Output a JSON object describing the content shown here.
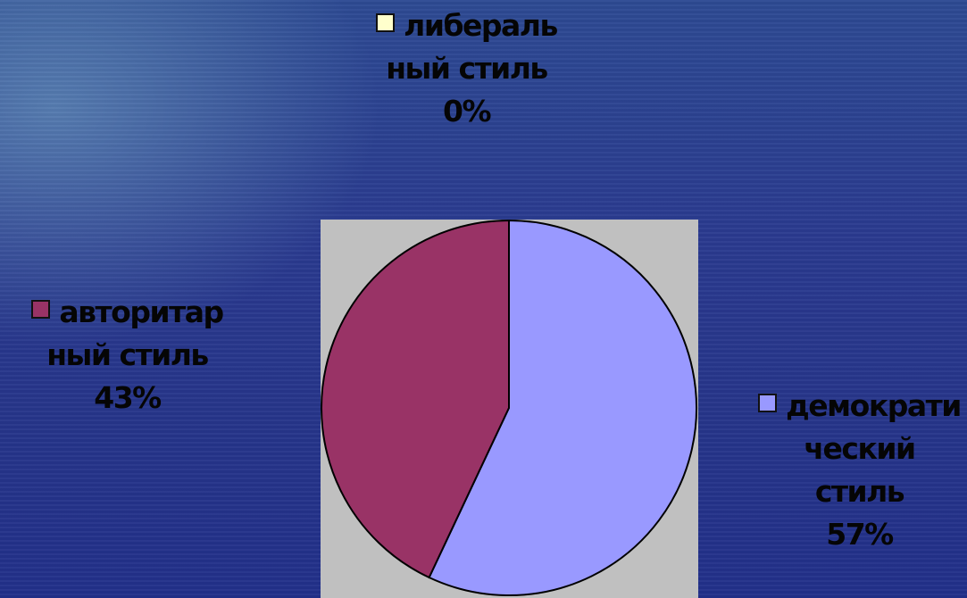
{
  "chart_data": {
    "type": "pie",
    "slices": [
      {
        "label_lines": [
          "демократи",
          "ческий",
          "стиль"
        ],
        "percent_label": "57%",
        "value": 57,
        "color": "#9999ff"
      },
      {
        "label_lines": [
          "авторитар",
          "ный стиль"
        ],
        "percent_label": "43%",
        "value": 43,
        "color": "#993366"
      },
      {
        "label_lines": [
          "либераль",
          "ный стиль"
        ],
        "percent_label": "0%",
        "value": 0,
        "color": "#ffffcc"
      }
    ],
    "plot_background": "#c0c0c0",
    "legend": "none"
  }
}
